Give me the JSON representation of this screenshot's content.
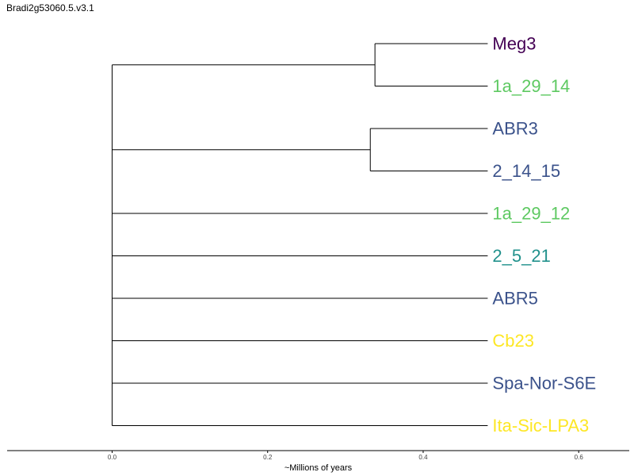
{
  "title": "Bradi2g53060.5.v3.1",
  "axis": {
    "label": "~Millions of years",
    "range": [
      -0.135,
      0.665
    ],
    "ticks": [
      0.0,
      0.2,
      0.4,
      0.6
    ],
    "tick_labels": [
      "0.0",
      "0.2",
      "0.4",
      "0.6"
    ]
  },
  "leaves": [
    {
      "label": "Meg3",
      "color": "#440154"
    },
    {
      "label": "1a_29_14",
      "color": "#5ec962"
    },
    {
      "label": "ABR3",
      "color": "#3b528b"
    },
    {
      "label": "2_14_15",
      "color": "#3b528b"
    },
    {
      "label": "1a_29_12",
      "color": "#5ec962"
    },
    {
      "label": "2_5_21",
      "color": "#21918c"
    },
    {
      "label": "ABR5",
      "color": "#3b528b"
    },
    {
      "label": "Cb23",
      "color": "#fde725"
    },
    {
      "label": "Spa-Nor-S6E",
      "color": "#3b528b"
    },
    {
      "label": "Ita-Sic-LPA3",
      "color": "#fde725"
    }
  ],
  "tree": {
    "root_x": 0.0,
    "tip_x": 0.483,
    "clades": [
      {
        "node_x": 0.338,
        "members": [
          "Meg3",
          "1a_29_14"
        ]
      },
      {
        "node_x": 0.332,
        "members": [
          "ABR3",
          "2_14_15"
        ]
      }
    ]
  }
}
